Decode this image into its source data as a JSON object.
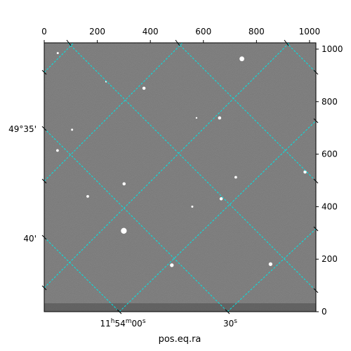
{
  "chart_data": {
    "type": "image",
    "xlabel": "pos.eq.ra",
    "ylabel": "",
    "pixel_axes": {
      "top_ticks": [
        0,
        200,
        400,
        600,
        800,
        1000
      ],
      "right_ticks": [
        0,
        200,
        400,
        600,
        800,
        1000
      ],
      "xlim": [
        0,
        1024
      ],
      "ylim": [
        0,
        1024
      ]
    },
    "ra_ticks": [
      "11h54m00s",
      "30s"
    ],
    "dec_ticks": [
      "49°35'",
      "40'"
    ],
    "grid": true,
    "grid_color": "#00e5e5",
    "background_color": "#6e6e6e",
    "stars": [
      {
        "x": 745,
        "y": 963,
        "r": 9
      },
      {
        "x": 376,
        "y": 851,
        "r": 6
      },
      {
        "x": 661,
        "y": 738,
        "r": 6
      },
      {
        "x": 105,
        "y": 693,
        "r": 4
      },
      {
        "x": 50,
        "y": 614,
        "r": 5
      },
      {
        "x": 983,
        "y": 532,
        "r": 6
      },
      {
        "x": 722,
        "y": 512,
        "r": 5
      },
      {
        "x": 301,
        "y": 487,
        "r": 6
      },
      {
        "x": 164,
        "y": 439,
        "r": 5
      },
      {
        "x": 667,
        "y": 430,
        "r": 6
      },
      {
        "x": 558,
        "y": 400,
        "r": 4
      },
      {
        "x": 300,
        "y": 308,
        "r": 11
      },
      {
        "x": 481,
        "y": 177,
        "r": 7
      },
      {
        "x": 853,
        "y": 181,
        "r": 7
      },
      {
        "x": 51,
        "y": 985,
        "r": 4
      },
      {
        "x": 233,
        "y": 876,
        "r": 3
      },
      {
        "x": 574,
        "y": 738,
        "r": 3
      }
    ]
  }
}
